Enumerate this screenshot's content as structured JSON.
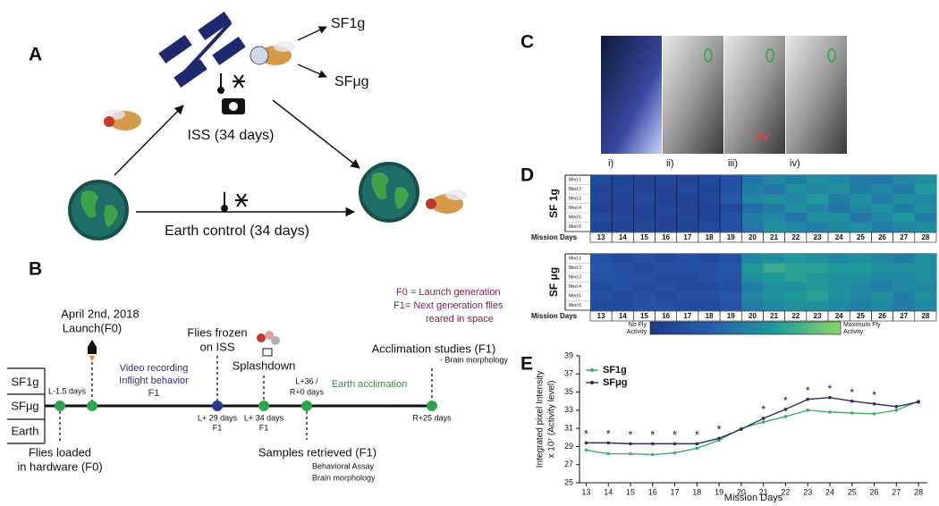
{
  "panel_a": {
    "label": "A",
    "to_sf1g": "SF1g",
    "to_sfug": "SFμg",
    "iss": "ISS (34 days)",
    "earth": "Earth control (34 days)"
  },
  "panel_b": {
    "label": "B",
    "groups": [
      "SF1g",
      "SFμg",
      "Earth"
    ],
    "legend": [
      "F0 = Launch generation",
      "F1= Next generation flies",
      "reared in space"
    ],
    "launch": [
      "April 2nd, 2018",
      "Launch(F0)"
    ],
    "video": [
      "Video recording",
      "Inflight behavior",
      "F1"
    ],
    "frozen": [
      "Flies frozen",
      "on ISS"
    ],
    "splashdown": "Splashdown",
    "acclimation": [
      "Acclimation studies (F1)",
      "- Brain morphology"
    ],
    "earth_acclimation": "Earth acclimation",
    "times": [
      "L-1.5 days",
      "L+ 29 days",
      "F1",
      "L+ 34 days",
      "F1",
      "L+36 /",
      "R+0 days",
      "R+25 days"
    ],
    "loaded": [
      "Flies loaded",
      "in hardware (F0)"
    ],
    "retrieved": [
      "Samples retrieved (F1)",
      "Behavioral Assay",
      "Brain morphology"
    ]
  },
  "panel_c": {
    "label": "C",
    "images": [
      "i)",
      "ii)",
      "iii)",
      "iv)"
    ]
  },
  "panel_d": {
    "label": "D",
    "days_label": "Mission Days",
    "days": [
      13,
      14,
      15,
      16,
      17,
      18,
      19,
      20,
      21,
      22,
      23,
      24,
      25,
      26,
      27,
      28
    ],
    "vlim": [
      0,
      1
    ],
    "colors": [
      "#1f3a8a",
      "#2860b0",
      "#1e9c9a",
      "#8fd46a"
    ],
    "groups": [
      {
        "name": "SF 1g",
        "rows": [
          "Med 1",
          "Med 2",
          "Med 3",
          "Med 4",
          "Med 5",
          "Med 6"
        ],
        "values": [
          [
            0.15,
            0.1,
            0.1,
            0.12,
            0.1,
            0.15,
            0.2,
            0.45,
            0.55,
            0.5,
            0.6,
            0.55,
            0.5,
            0.45,
            0.55,
            0.6
          ],
          [
            0.1,
            0.12,
            0.1,
            0.1,
            0.15,
            0.1,
            0.2,
            0.5,
            0.45,
            0.6,
            0.55,
            0.6,
            0.5,
            0.55,
            0.5,
            0.65
          ],
          [
            0.12,
            0.1,
            0.15,
            0.1,
            0.1,
            0.12,
            0.25,
            0.55,
            0.6,
            0.55,
            0.65,
            0.5,
            0.6,
            0.5,
            0.6,
            0.55
          ],
          [
            0.1,
            0.1,
            0.1,
            0.12,
            0.1,
            0.1,
            0.15,
            0.4,
            0.5,
            0.6,
            0.55,
            0.45,
            0.55,
            0.6,
            0.5,
            0.6
          ],
          [
            0.15,
            0.12,
            0.1,
            0.1,
            0.12,
            0.1,
            0.2,
            0.5,
            0.55,
            0.45,
            0.6,
            0.6,
            0.45,
            0.55,
            0.65,
            0.5
          ],
          [
            0.1,
            0.1,
            0.12,
            0.1,
            0.1,
            0.15,
            0.2,
            0.45,
            0.6,
            0.55,
            0.5,
            0.55,
            0.6,
            0.5,
            0.55,
            0.6
          ]
        ]
      },
      {
        "name": "SF μg",
        "rows": [
          "Med 1",
          "Med 2",
          "Med 3",
          "Med 4",
          "Med 5",
          "Med 6"
        ],
        "values": [
          [
            0.2,
            0.15,
            0.2,
            0.15,
            0.2,
            0.15,
            0.2,
            0.55,
            0.6,
            0.65,
            0.6,
            0.55,
            0.6,
            0.55,
            0.5,
            0.6
          ],
          [
            0.25,
            0.2,
            0.15,
            0.2,
            0.2,
            0.2,
            0.25,
            0.65,
            0.75,
            0.7,
            0.7,
            0.65,
            0.65,
            0.6,
            0.6,
            0.6
          ],
          [
            0.2,
            0.2,
            0.2,
            0.15,
            0.15,
            0.2,
            0.2,
            0.6,
            0.65,
            0.7,
            0.65,
            0.6,
            0.6,
            0.55,
            0.55,
            0.6
          ],
          [
            0.15,
            0.2,
            0.15,
            0.2,
            0.15,
            0.15,
            0.2,
            0.5,
            0.6,
            0.6,
            0.65,
            0.6,
            0.55,
            0.5,
            0.55,
            0.55
          ],
          [
            0.2,
            0.15,
            0.2,
            0.15,
            0.2,
            0.2,
            0.25,
            0.55,
            0.6,
            0.65,
            0.7,
            0.6,
            0.55,
            0.6,
            0.5,
            0.6
          ],
          [
            0.15,
            0.15,
            0.2,
            0.2,
            0.15,
            0.15,
            0.2,
            0.5,
            0.55,
            0.6,
            0.6,
            0.55,
            0.5,
            0.55,
            0.5,
            0.55
          ]
        ]
      }
    ],
    "colorbar_low": [
      "No Fly",
      "Activity"
    ],
    "colorbar_high": [
      "Maximum Fly",
      "Activity"
    ]
  },
  "chart_data": {
    "type": "line",
    "label": "E",
    "x_label": "Mission Days",
    "y_label": [
      "Integrated pixel Intensity",
      "x 10⁷ (Activity level)"
    ],
    "x": [
      13,
      14,
      15,
      16,
      17,
      18,
      19,
      20,
      21,
      22,
      23,
      24,
      25,
      26,
      27,
      28
    ],
    "xlim": [
      12.7,
      28.4
    ],
    "xticks": [
      13,
      14,
      15,
      16,
      17,
      18,
      19,
      20,
      21,
      22,
      23,
      24,
      25,
      26,
      27,
      28
    ],
    "ylim": [
      25,
      39
    ],
    "yticks": [
      25,
      27,
      29,
      31,
      33,
      35,
      37,
      39
    ],
    "series": [
      {
        "name": "SF1g",
        "color": "#3aae6a",
        "values": [
          28.6,
          28.2,
          28.2,
          28.1,
          28.3,
          28.8,
          29.7,
          31.0,
          31.7,
          32.3,
          33.0,
          32.8,
          32.7,
          32.6,
          33.0,
          34.0
        ]
      },
      {
        "name": "SFμg",
        "color": "#2a2a6e",
        "values": [
          29.4,
          29.4,
          29.3,
          29.3,
          29.3,
          29.3,
          29.9,
          30.9,
          32.1,
          33.1,
          34.2,
          34.4,
          34.0,
          33.7,
          33.4,
          33.9
        ]
      }
    ],
    "significance": {
      "label": "*",
      "x": [
        13,
        14,
        15,
        16,
        17,
        18,
        19,
        21,
        22,
        23,
        24,
        25,
        26
      ]
    }
  }
}
